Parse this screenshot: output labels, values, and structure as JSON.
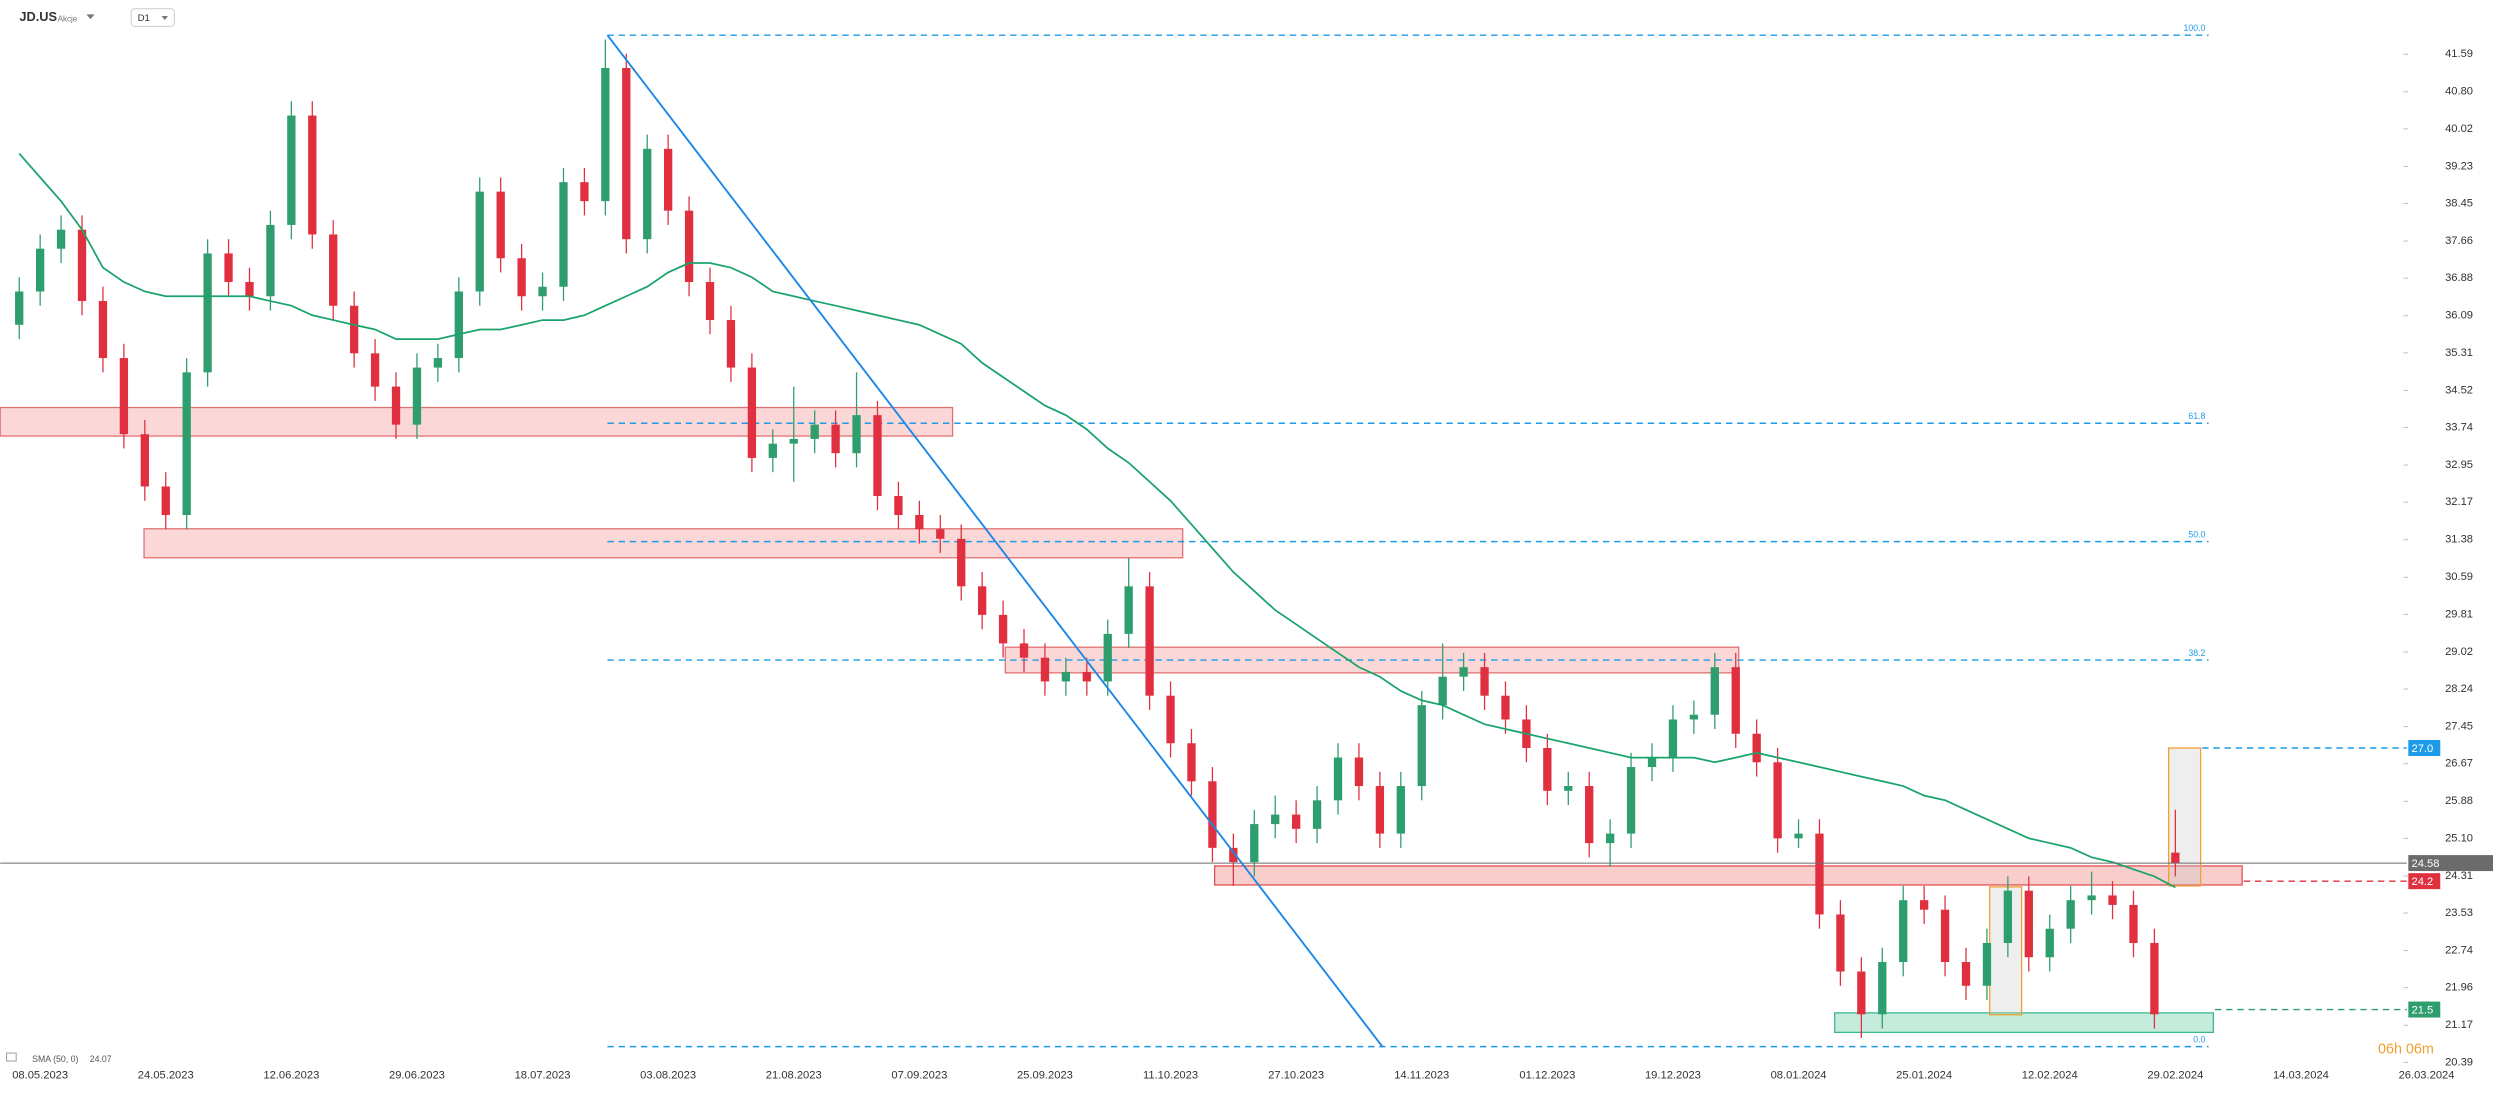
{
  "chart_data": {
    "type": "candlestick",
    "title": "JD.US",
    "subtitle": "Akcje",
    "timeframe": "D1",
    "countdown": "06h 06m",
    "up_color": "#2e9e6e",
    "down_color": "#e03040",
    "categories": [
      null,
      null,
      "08.05.2023",
      null,
      null,
      null,
      null,
      null,
      "24.05.2023",
      null,
      null,
      null,
      null,
      null,
      "12.06.2023",
      null,
      null,
      null,
      null,
      null,
      "29.06.2023",
      null,
      null,
      null,
      null,
      null,
      "18.07.2023",
      null,
      null,
      null,
      null,
      null,
      "03.08.2023",
      null,
      null,
      null,
      null,
      null,
      "21.08.2023",
      null,
      null,
      null,
      null,
      null,
      "07.09.2023",
      null,
      null,
      null,
      null,
      null,
      "25.09.2023",
      null,
      null,
      null,
      null,
      null,
      "11.10.2023",
      null,
      null,
      null,
      null,
      null,
      "27.10.2023",
      null,
      null,
      null,
      null,
      null,
      "14.11.2023",
      null,
      null,
      null,
      null,
      null,
      "01.12.2023",
      null,
      null,
      null,
      null,
      null,
      "19.12.2023",
      null,
      null,
      null,
      null,
      null,
      "08.01.2024",
      null,
      null,
      null,
      null,
      null,
      "25.01.2024",
      null,
      null,
      null,
      null,
      null,
      "12.02.2024",
      null,
      null,
      null,
      null,
      null,
      "29.02.2024",
      null,
      null,
      null,
      null,
      null,
      "14.03.2024",
      null,
      null,
      null,
      null,
      null,
      "26.03.2024"
    ],
    "open": [
      null,
      35.9,
      36.6,
      37.5,
      37.9,
      36.4,
      35.2,
      33.6,
      32.5,
      31.9,
      34.9,
      37.4,
      36.8,
      36.5,
      38.0,
      40.3,
      37.8,
      36.3,
      35.3,
      34.6,
      33.8,
      35.0,
      35.2,
      36.6,
      38.7,
      37.3,
      36.5,
      36.7,
      38.9,
      38.5,
      41.3,
      37.7,
      39.6,
      38.3,
      36.8,
      36.0,
      35.0,
      33.1,
      33.4,
      33.5,
      33.8,
      33.2,
      34.0,
      32.3,
      31.9,
      31.6,
      31.4,
      30.4,
      29.8,
      29.2,
      28.9,
      28.4,
      28.6,
      28.4,
      29.4,
      30.4,
      28.1,
      27.1,
      26.3,
      24.9,
      24.6,
      25.4,
      25.6,
      25.3,
      25.9,
      26.8,
      26.2,
      25.2,
      26.2,
      27.9,
      28.5,
      28.7,
      28.1,
      27.6,
      27.0,
      26.1,
      26.2,
      25.0,
      25.2,
      26.6,
      26.8,
      27.6,
      27.7,
      28.7,
      27.3,
      26.7,
      25.1,
      25.2,
      23.5,
      22.3,
      21.4,
      22.5,
      23.8,
      23.6,
      22.5,
      22.0,
      22.9,
      24.0,
      22.6,
      23.2,
      23.8,
      23.9,
      23.7,
      22.9,
      24.8,
      null,
      null,
      null,
      null,
      null,
      null,
      null,
      null,
      null,
      null,
      null,
      null
    ],
    "high": [
      null,
      36.9,
      37.8,
      38.2,
      38.2,
      36.7,
      35.5,
      33.9,
      32.8,
      35.2,
      37.7,
      37.7,
      37.1,
      38.3,
      40.6,
      40.6,
      38.1,
      36.6,
      35.6,
      34.9,
      35.3,
      35.5,
      36.9,
      39.0,
      39.0,
      37.6,
      37.0,
      39.2,
      39.2,
      41.9,
      41.6,
      39.9,
      39.9,
      38.6,
      37.1,
      36.3,
      35.3,
      33.7,
      34.6,
      34.1,
      34.1,
      34.9,
      34.3,
      32.6,
      32.2,
      31.9,
      31.7,
      30.7,
      30.1,
      29.5,
      29.2,
      28.9,
      28.9,
      29.7,
      31.0,
      30.7,
      28.4,
      27.4,
      26.6,
      25.2,
      25.7,
      26.0,
      25.9,
      26.2,
      27.1,
      27.1,
      26.5,
      26.5,
      28.2,
      29.2,
      29.0,
      29.0,
      28.4,
      27.9,
      27.3,
      26.5,
      26.5,
      25.5,
      26.9,
      27.1,
      27.9,
      28.0,
      29.0,
      29.0,
      27.6,
      27.0,
      25.5,
      25.5,
      23.8,
      22.6,
      22.8,
      24.1,
      24.1,
      23.9,
      22.8,
      23.2,
      24.3,
      24.3,
      23.5,
      24.1,
      24.4,
      24.2,
      24.0,
      23.2,
      25.7,
      null,
      null,
      null,
      null,
      null,
      null,
      null,
      null,
      null,
      null,
      null,
      null
    ],
    "low": [
      null,
      35.6,
      36.3,
      37.2,
      36.1,
      34.9,
      33.3,
      32.2,
      31.6,
      31.6,
      34.6,
      36.5,
      36.2,
      36.2,
      37.7,
      37.5,
      36.0,
      35.0,
      34.3,
      33.5,
      33.5,
      34.7,
      34.9,
      36.3,
      37.0,
      36.2,
      36.2,
      36.4,
      38.2,
      38.2,
      37.4,
      37.4,
      38.0,
      36.5,
      35.7,
      34.7,
      32.8,
      32.8,
      32.6,
      33.2,
      32.9,
      32.9,
      32.0,
      31.6,
      31.3,
      31.1,
      30.1,
      29.5,
      28.9,
      28.6,
      28.1,
      28.1,
      28.1,
      28.1,
      29.1,
      27.8,
      26.8,
      26.0,
      24.6,
      24.1,
      24.3,
      25.1,
      25.0,
      25.0,
      25.6,
      25.9,
      24.9,
      24.9,
      25.9,
      27.6,
      28.2,
      27.8,
      27.3,
      26.7,
      25.8,
      25.8,
      24.7,
      24.5,
      24.9,
      26.3,
      26.5,
      27.3,
      27.4,
      27.0,
      26.4,
      24.8,
      24.9,
      23.2,
      22.0,
      20.9,
      21.1,
      22.2,
      23.3,
      22.2,
      21.7,
      21.7,
      22.6,
      22.3,
      22.3,
      22.9,
      23.5,
      23.4,
      22.6,
      21.1,
      24.3,
      null,
      null,
      null,
      null,
      null,
      null,
      null,
      null,
      null,
      null,
      null,
      null
    ],
    "close": [
      null,
      36.6,
      37.5,
      37.9,
      36.4,
      35.2,
      33.6,
      32.5,
      31.9,
      34.9,
      37.4,
      36.8,
      36.5,
      38.0,
      40.3,
      37.8,
      36.3,
      35.3,
      34.6,
      33.8,
      35.0,
      35.2,
      36.6,
      38.7,
      37.3,
      36.5,
      36.7,
      38.9,
      38.5,
      41.3,
      37.7,
      39.6,
      38.3,
      36.8,
      36.0,
      35.0,
      33.1,
      33.4,
      33.5,
      33.8,
      33.2,
      34.0,
      32.3,
      31.9,
      31.6,
      31.4,
      30.4,
      29.8,
      29.2,
      28.9,
      28.4,
      28.6,
      28.4,
      29.4,
      30.4,
      28.1,
      27.1,
      26.3,
      24.9,
      24.6,
      25.4,
      25.6,
      25.3,
      25.9,
      26.8,
      26.2,
      25.2,
      26.2,
      27.9,
      28.5,
      28.7,
      28.1,
      27.6,
      27.0,
      26.1,
      26.2,
      25.0,
      25.2,
      26.6,
      26.8,
      27.6,
      27.7,
      28.7,
      27.3,
      26.7,
      25.1,
      25.2,
      23.5,
      22.3,
      21.4,
      22.5,
      23.8,
      23.6,
      22.5,
      22.0,
      22.9,
      24.0,
      22.6,
      23.2,
      23.8,
      23.9,
      23.7,
      22.9,
      21.4,
      24.58,
      null,
      null,
      null,
      null,
      null,
      null,
      null,
      null,
      null,
      null,
      null,
      null
    ],
    "overlays": [
      {
        "name": "SMA (50, 0)",
        "color": "#1aa36b",
        "values": [
          null,
          39.5,
          39.0,
          38.5,
          37.9,
          37.1,
          36.8,
          36.6,
          36.5,
          36.5,
          36.5,
          36.5,
          36.5,
          36.4,
          36.3,
          36.1,
          36.0,
          35.9,
          35.8,
          35.6,
          35.6,
          35.6,
          35.7,
          35.8,
          35.8,
          35.9,
          36.0,
          36.0,
          36.1,
          36.3,
          36.5,
          36.7,
          37.0,
          37.2,
          37.2,
          37.1,
          36.9,
          36.6,
          36.5,
          36.4,
          36.3,
          36.2,
          36.1,
          36.0,
          35.9,
          35.7,
          35.5,
          35.1,
          34.8,
          34.5,
          34.2,
          34.0,
          33.7,
          33.3,
          33.0,
          32.6,
          32.2,
          31.7,
          31.2,
          30.7,
          30.3,
          29.9,
          29.6,
          29.3,
          29.0,
          28.7,
          28.5,
          28.2,
          28.0,
          27.9,
          27.7,
          27.5,
          27.4,
          27.3,
          27.2,
          27.1,
          27.0,
          26.9,
          26.8,
          26.8,
          26.8,
          26.8,
          26.7,
          26.8,
          26.9,
          26.8,
          26.7,
          26.6,
          26.5,
          26.4,
          26.3,
          26.2,
          26.0,
          25.9,
          25.7,
          25.5,
          25.3,
          25.1,
          25.0,
          24.9,
          24.7,
          24.6,
          24.45,
          24.3,
          24.07,
          null,
          null,
          null,
          null,
          null,
          null,
          null,
          null,
          null,
          null,
          null,
          null
        ]
      }
    ],
    "ylim": [
      20.35,
      42.73
    ],
    "yticks": [
      41.59,
      {
        "value": 40.8,
        "label": "40.80"
      },
      40.02,
      39.23,
      38.45,
      37.66,
      36.88,
      36.09,
      35.31,
      34.52,
      33.74,
      32.95,
      32.17,
      31.38,
      30.59,
      29.81,
      29.02,
      28.24,
      27.45,
      26.67,
      25.88,
      {
        "value": 25.1,
        "label": "25.10"
      },
      24.31,
      23.53,
      22.74,
      21.96,
      21.17,
      20.39
    ],
    "zones": [
      {
        "low": 33.56,
        "high": 34.16,
        "color": "#e07070"
      },
      {
        "low": 31.0,
        "high": 31.61,
        "color": "#e07070"
      },
      {
        "low": 28.58,
        "high": 29.12,
        "color": "#e07070"
      },
      {
        "low": 24.12,
        "high": 24.52,
        "color": "#e05050"
      },
      {
        "low": 21.02,
        "high": 21.43,
        "color": "#3cb98c"
      },
      {
        "low": 21.39,
        "high": 24.08,
        "color": "#f0a030"
      },
      {
        "low": 24.1,
        "high": 27.0,
        "color": "#f0a030"
      }
    ],
    "fib_levels": [
      {
        "label": "100.0",
        "value": 41.99
      },
      {
        "label": "61.8",
        "value": 33.83
      },
      {
        "label": "50.0",
        "value": 31.34
      },
      {
        "label": "38.2",
        "value": 28.85
      },
      {
        "label": "0.0",
        "value": 20.72
      }
    ],
    "price_levels": [
      {
        "value": 27.0,
        "label": "27.0",
        "color": "#1e9be6"
      },
      {
        "value": 24.2,
        "label": "24.2",
        "color": "#e03040"
      },
      {
        "value": 21.5,
        "label": "21.5",
        "color": "#2e9e6e"
      },
      {
        "value": 24.58,
        "color": "#6b6b6b"
      }
    ]
  }
}
